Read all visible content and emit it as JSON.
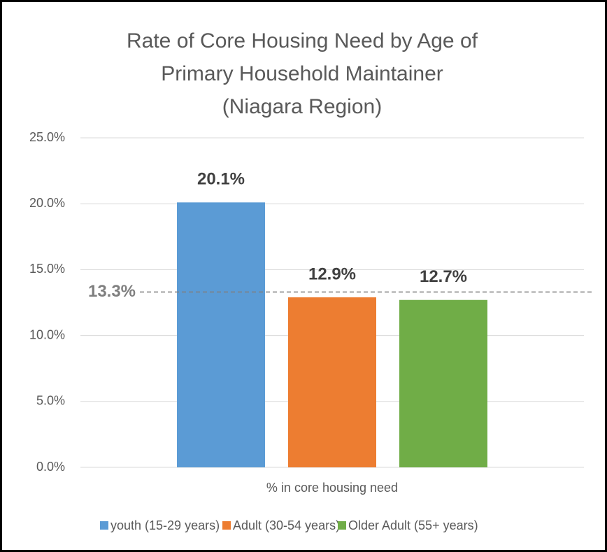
{
  "chart_data": {
    "type": "bar",
    "title": [
      "Rate of Core Housing Need by Age of",
      "Primary Household Maintainer",
      "(Niagara Region)"
    ],
    "categories": [
      "% in core housing need"
    ],
    "series": [
      {
        "name": "youth (15-29 years)",
        "color": "#5b9bd5",
        "values": [
          20.1
        ],
        "value_labels": [
          "20.1%"
        ]
      },
      {
        "name": "Adult (30-54 years)",
        "color": "#ed7d31",
        "values": [
          12.9
        ],
        "value_labels": [
          "12.9%"
        ]
      },
      {
        "name": "Older Adult (55+ years)",
        "color": "#70ad47",
        "values": [
          12.7
        ],
        "value_labels": [
          "12.7%"
        ]
      }
    ],
    "ylim": [
      0,
      25
    ],
    "yticks": [
      {
        "value": 0,
        "label": "0.0%"
      },
      {
        "value": 5,
        "label": "5.0%"
      },
      {
        "value": 10,
        "label": "10.0%"
      },
      {
        "value": 15,
        "label": "15.0%"
      },
      {
        "value": 20,
        "label": "20.0%"
      },
      {
        "value": 25,
        "label": "25.0%"
      }
    ],
    "reference_line": {
      "value": 13.3,
      "label": "13.3%"
    },
    "grid": true,
    "legend": "bottom"
  }
}
